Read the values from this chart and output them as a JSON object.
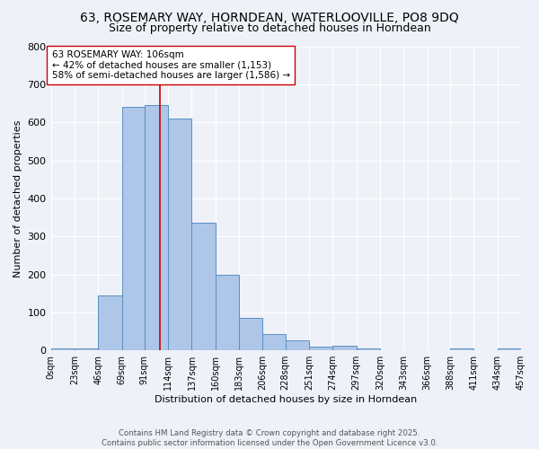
{
  "title_line1": "63, ROSEMARY WAY, HORNDEAN, WATERLOOVILLE, PO8 9DQ",
  "title_line2": "Size of property relative to detached houses in Horndean",
  "xlabel": "Distribution of detached houses by size in Horndean",
  "ylabel": "Number of detached properties",
  "bin_edges": [
    0,
    23,
    46,
    69,
    91,
    114,
    137,
    160,
    183,
    206,
    228,
    251,
    274,
    297,
    320,
    343,
    366,
    388,
    411,
    434,
    457
  ],
  "bin_counts": [
    5,
    5,
    145,
    640,
    645,
    610,
    335,
    200,
    85,
    42,
    27,
    10,
    12,
    5,
    0,
    0,
    0,
    5,
    0,
    5
  ],
  "bar_color": "#aec6e8",
  "bar_edge_color": "#5a8fc2",
  "vline_x": 106,
  "vline_color": "#cc0000",
  "annotation_line1": "63 ROSEMARY WAY: 106sqm",
  "annotation_line2": "← 42% of detached houses are smaller (1,153)",
  "annotation_line3": "58% of semi-detached houses are larger (1,586) →",
  "annotation_box_color": "white",
  "annotation_box_edge_color": "#cc0000",
  "ylim": [
    0,
    800
  ],
  "yticks": [
    0,
    100,
    200,
    300,
    400,
    500,
    600,
    700,
    800
  ],
  "xtick_labels": [
    "0sqm",
    "23sqm",
    "46sqm",
    "69sqm",
    "91sqm",
    "114sqm",
    "137sqm",
    "160sqm",
    "183sqm",
    "206sqm",
    "228sqm",
    "251sqm",
    "274sqm",
    "297sqm",
    "320sqm",
    "343sqm",
    "366sqm",
    "388sqm",
    "411sqm",
    "434sqm",
    "457sqm"
  ],
  "footer_text": "Contains HM Land Registry data © Crown copyright and database right 2025.\nContains public sector information licensed under the Open Government Licence v3.0.",
  "bg_color": "#eef2f8",
  "grid_color": "white",
  "annotation_fontsize": 7.5,
  "title1_fontsize": 10,
  "title2_fontsize": 9,
  "axis_label_fontsize": 8,
  "ytick_fontsize": 8,
  "xtick_fontsize": 7
}
